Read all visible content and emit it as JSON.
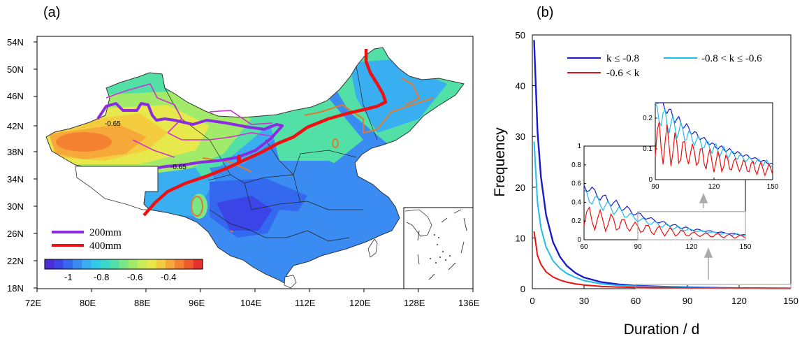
{
  "panels": {
    "a": "(a)",
    "b": "(b)"
  },
  "map": {
    "lat_labels": [
      "54N",
      "50N",
      "46N",
      "42N",
      "38N",
      "34N",
      "30N",
      "26N",
      "22N",
      "18N"
    ],
    "lon_labels": [
      "72E",
      "80E",
      "88E",
      "96E",
      "104E",
      "112E",
      "120E",
      "128E",
      "136E"
    ],
    "lines": [
      {
        "label": "200mm",
        "color": "#8a2be2"
      },
      {
        "label": "400mm",
        "color": "#ee1111"
      }
    ],
    "contour_labels": [
      "-0.65",
      "-0.65"
    ],
    "colorbar": {
      "labels": [
        "-1",
        "-0.8",
        "-0.6",
        "-0.4"
      ],
      "colors": [
        "#4a2bd8",
        "#3b44e6",
        "#3468ee",
        "#3a8cf2",
        "#39aef0",
        "#32c8e8",
        "#3ad8c8",
        "#52e0a6",
        "#7ae686",
        "#a2ea6a",
        "#c8ec58",
        "#e6e84c",
        "#f4cc40",
        "#f6a838",
        "#f48232",
        "#f05a2c",
        "#e8302a"
      ]
    }
  },
  "chart_data": {
    "type": "line",
    "xlabel": "Duration / d",
    "ylabel": "Frequency",
    "xlim": [
      0,
      150
    ],
    "ylim": [
      0,
      50
    ],
    "x_ticks": [
      0,
      30,
      60,
      90,
      120,
      150
    ],
    "y_ticks": [
      0,
      10,
      20,
      30,
      40,
      50
    ],
    "legend": [
      "k ≤ -0.8",
      "-0.8 < k  ≤  -0.6",
      "-0.6 < k"
    ],
    "series": [
      {
        "name": "k ≤ -0.8",
        "color": "#1a1acc",
        "x": [
          1,
          3,
          5,
          8,
          12,
          16,
          20,
          25,
          30,
          40,
          50,
          60,
          70,
          80,
          90,
          100,
          110,
          120,
          130,
          140,
          150
        ],
        "y": [
          49,
          31,
          22,
          14.5,
          9.2,
          6.3,
          4.5,
          3.1,
          2.2,
          1.3,
          0.85,
          0.58,
          0.45,
          0.36,
          0.27,
          0.2,
          0.15,
          0.11,
          0.09,
          0.07,
          0.05
        ]
      },
      {
        "name": "-0.8 < k  ≤  -0.6",
        "color": "#22bbee",
        "x": [
          1,
          3,
          5,
          8,
          12,
          16,
          20,
          25,
          30,
          40,
          50,
          60,
          70,
          80,
          90,
          100,
          110,
          120,
          130,
          140,
          150
        ],
        "y": [
          29,
          17,
          12,
          8.2,
          5.5,
          4.0,
          3.0,
          2.2,
          1.6,
          0.95,
          0.65,
          0.48,
          0.38,
          0.3,
          0.22,
          0.17,
          0.13,
          0.1,
          0.08,
          0.06,
          0.05
        ]
      },
      {
        "name": "-0.6 < k",
        "color": "#ee1111",
        "x": [
          1,
          3,
          5,
          8,
          12,
          16,
          20,
          25,
          30,
          40,
          50,
          60,
          70,
          80,
          90,
          100,
          110,
          120,
          130,
          140,
          150
        ],
        "y": [
          11.3,
          6.5,
          4.8,
          3.3,
          2.3,
          1.7,
          1.3,
          0.95,
          0.72,
          0.45,
          0.32,
          0.25,
          0.2,
          0.17,
          0.13,
          0.1,
          0.08,
          0.06,
          0.05,
          0.04,
          0.03
        ]
      }
    ],
    "inset1": {
      "xlim": [
        60,
        150
      ],
      "ylim": [
        0,
        1
      ],
      "x_ticks": [
        60,
        90,
        120,
        150
      ],
      "y_ticks": [
        0,
        0.2,
        0.4,
        0.6,
        0.8,
        1
      ]
    },
    "inset2": {
      "xlim": [
        90,
        150
      ],
      "ylim": [
        0,
        0.25
      ],
      "x_ticks": [
        90,
        120,
        150
      ],
      "y_ticks": [
        0,
        0.1,
        0.2
      ]
    }
  }
}
